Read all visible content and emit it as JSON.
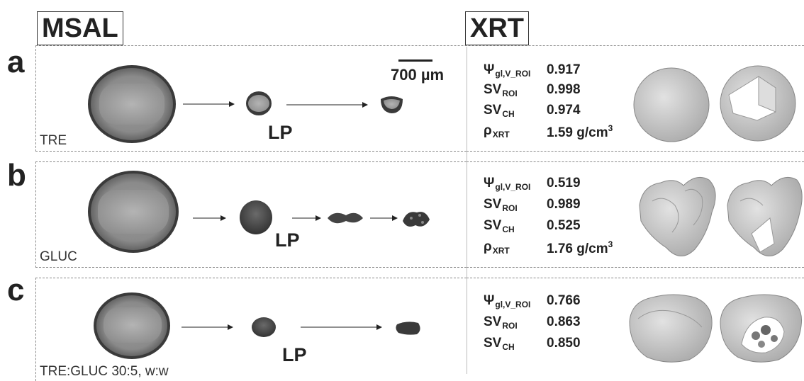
{
  "headers": {
    "left": "MSAL",
    "right": "XRT"
  },
  "scale_bar": {
    "label": "700 µm"
  },
  "rows": [
    {
      "letter": "a",
      "label": "TRE",
      "lp": "LP",
      "metrics": [
        {
          "symbol": "Ψ",
          "sub": "gl,V_ROI",
          "value": "0.917",
          "value_sup": ""
        },
        {
          "symbol": "SV",
          "sub": "ROI",
          "value": "0.998",
          "value_sup": ""
        },
        {
          "symbol": "SV",
          "sub": "CH",
          "value": "0.974",
          "value_sup": ""
        },
        {
          "symbol": "ρ",
          "sub": "XRT",
          "value": "1.59 g/cm",
          "value_sup": "3"
        }
      ]
    },
    {
      "letter": "b",
      "label": "GLUC",
      "lp": "LP",
      "metrics": [
        {
          "symbol": "Ψ",
          "sub": "gl,V_ROI",
          "value": "0.519",
          "value_sup": ""
        },
        {
          "symbol": "SV",
          "sub": "ROI",
          "value": "0.989",
          "value_sup": ""
        },
        {
          "symbol": "SV",
          "sub": "CH",
          "value": "0.525",
          "value_sup": ""
        },
        {
          "symbol": "ρ",
          "sub": "XRT",
          "value": "1.76 g/cm",
          "value_sup": "3"
        }
      ]
    },
    {
      "letter": "c",
      "label": "TRE:GLUC 30:5, w:w",
      "lp": "LP",
      "metrics": [
        {
          "symbol": "Ψ",
          "sub": "gl,V_ROI",
          "value": "0.766",
          "value_sup": ""
        },
        {
          "symbol": "SV",
          "sub": "ROI",
          "value": "0.863",
          "value_sup": ""
        },
        {
          "symbol": "SV",
          "sub": "CH",
          "value": "0.850",
          "value_sup": ""
        }
      ]
    }
  ]
}
